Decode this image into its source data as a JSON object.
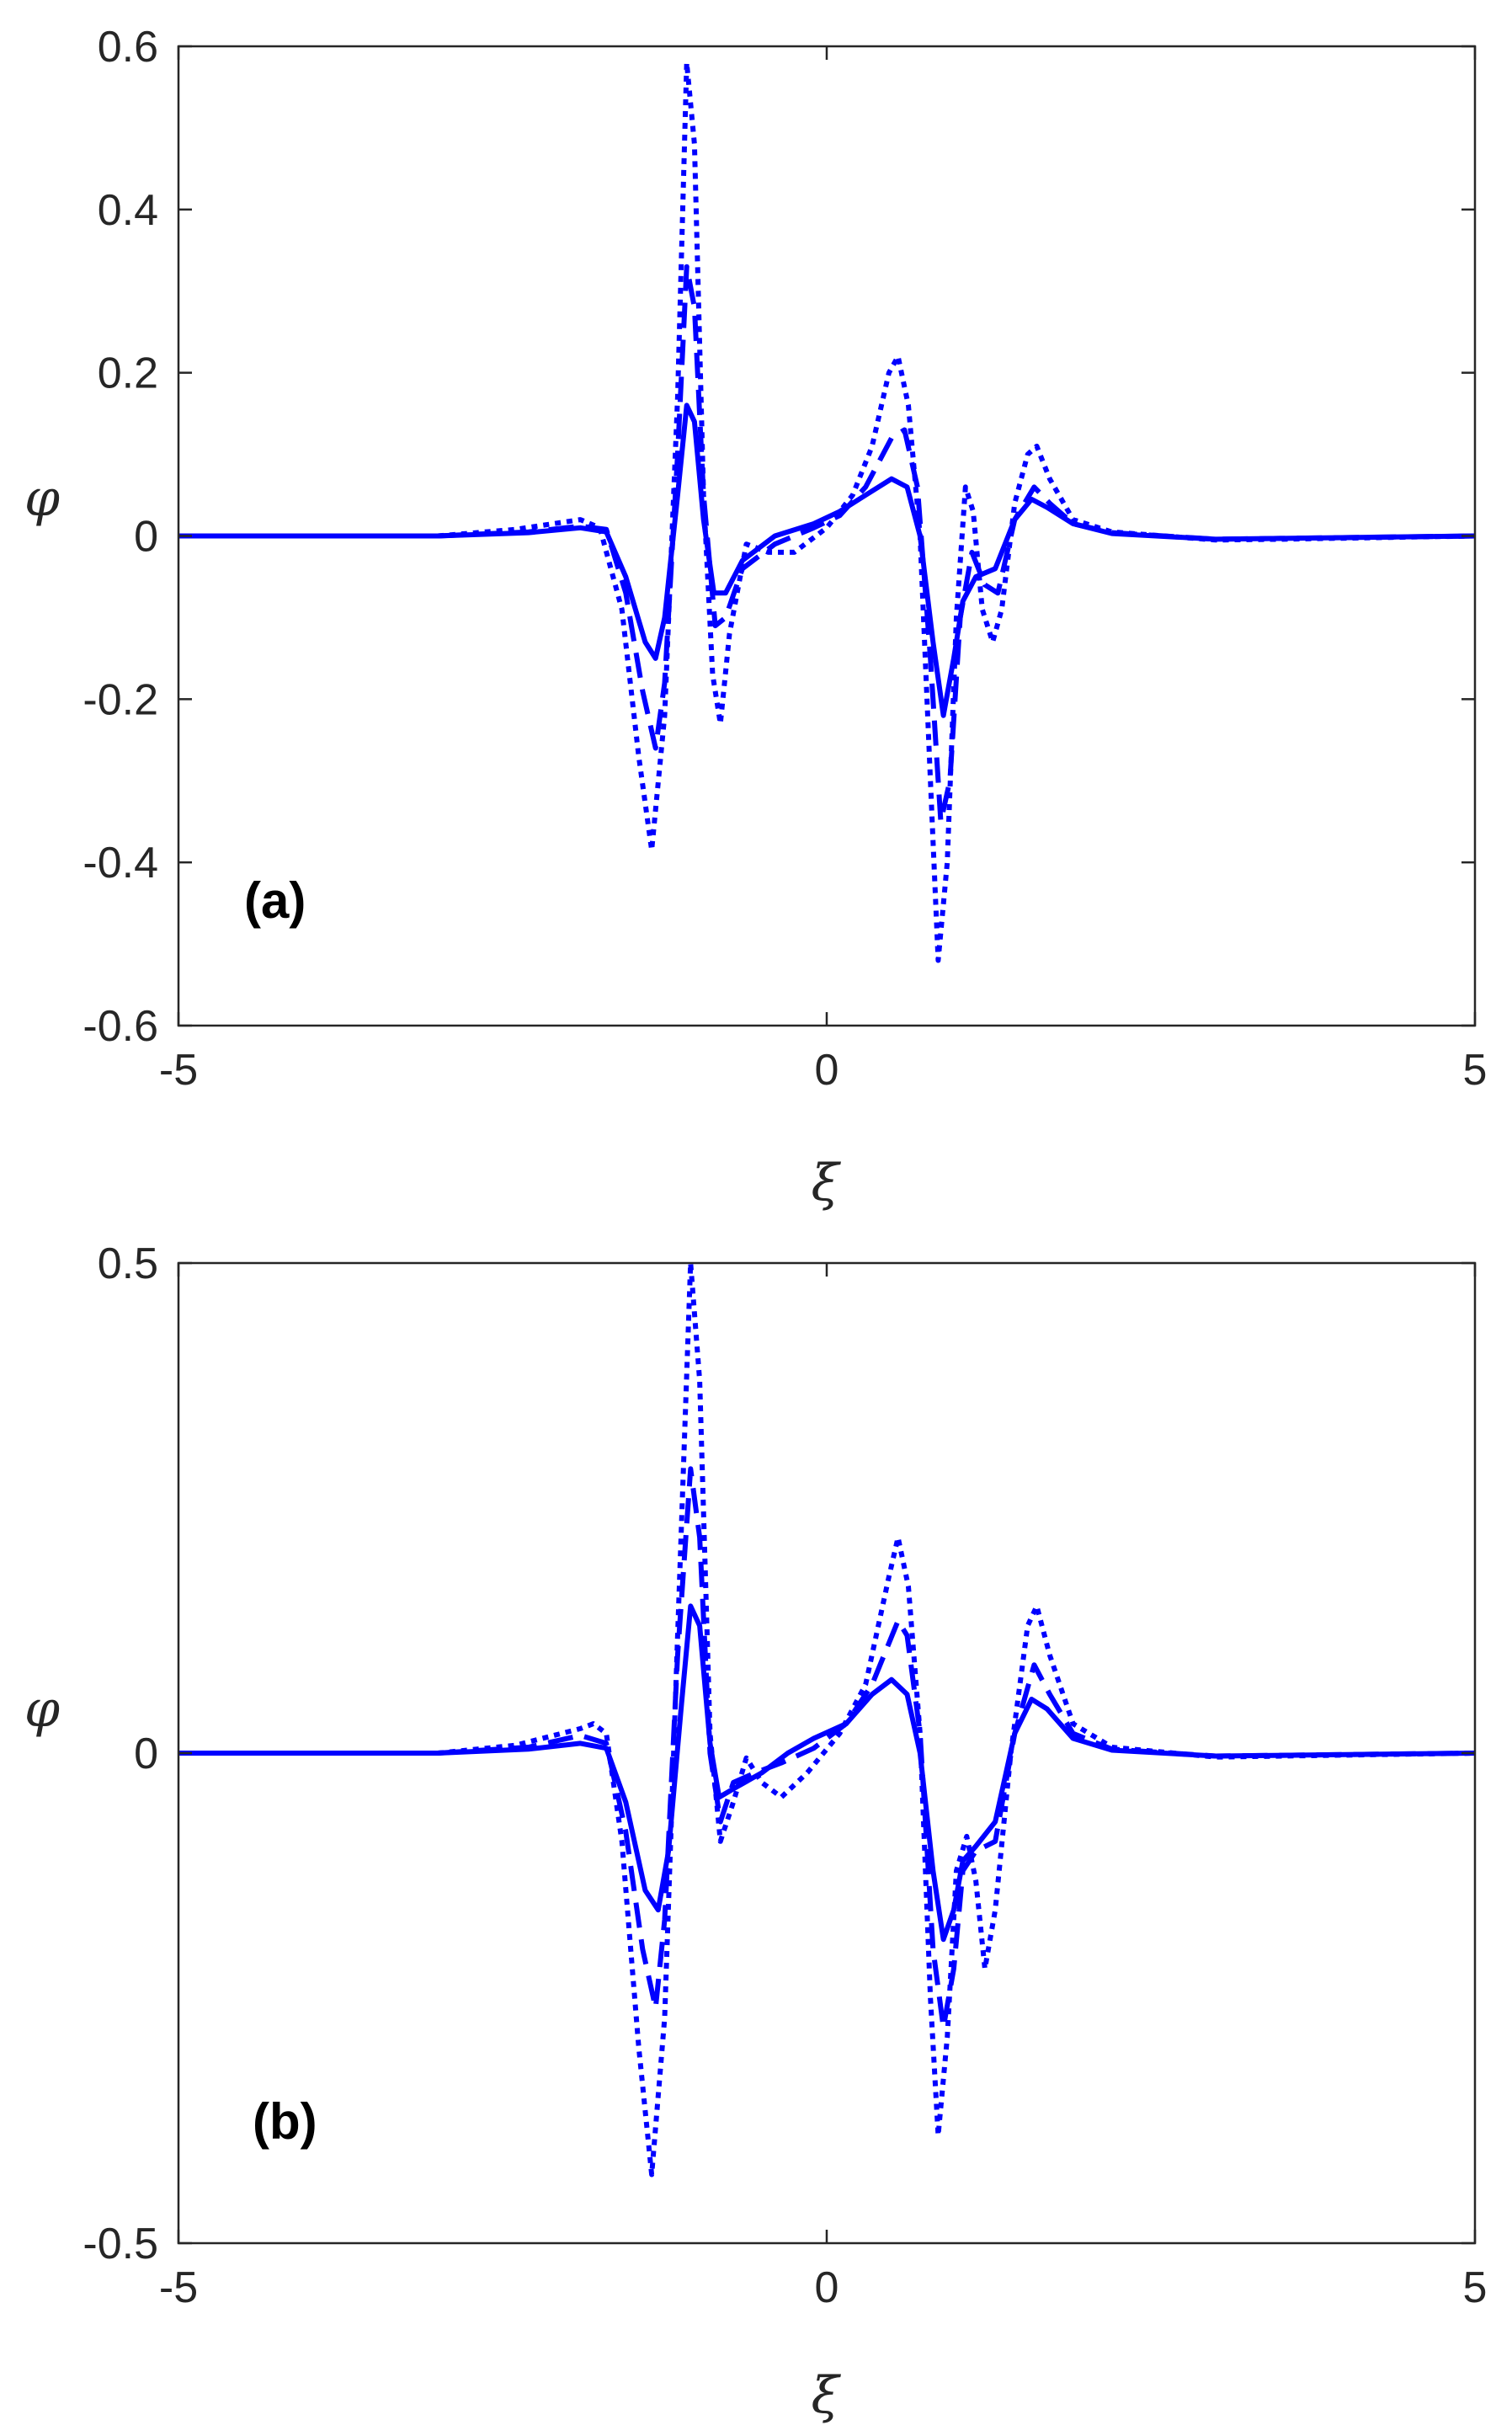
{
  "chart_data": [
    {
      "type": "line",
      "panel_label": "(a)",
      "xlabel": "ξ",
      "ylabel": "φ",
      "xlim": [
        -5,
        5
      ],
      "ylim": [
        -0.6,
        0.6
      ],
      "xticks": [
        -5,
        0,
        5
      ],
      "yticks": [
        -0.6,
        -0.4,
        -0.2,
        0,
        0.2,
        0.4,
        0.6
      ],
      "xtick_labels": [
        "-5",
        "0",
        "5"
      ],
      "ytick_labels": [
        "-0.6",
        "-0.4",
        "-0.2",
        "0",
        "0.2",
        "0.4",
        "0.6"
      ],
      "grid": false,
      "line_color": "#0000ff",
      "series": [
        {
          "style": "solid",
          "points": [
            [
              -5,
              0
            ],
            [
              -3,
              0
            ],
            [
              -2.3,
              0.004
            ],
            [
              -1.9,
              0.01
            ],
            [
              -1.7,
              0.005
            ],
            [
              -1.55,
              -0.05
            ],
            [
              -1.4,
              -0.13
            ],
            [
              -1.32,
              -0.15
            ],
            [
              -1.25,
              -0.1
            ],
            [
              -1.15,
              0.05
            ],
            [
              -1.08,
              0.16
            ],
            [
              -1.02,
              0.14
            ],
            [
              -0.95,
              0.02
            ],
            [
              -0.87,
              -0.07
            ],
            [
              -0.78,
              -0.07
            ],
            [
              -0.65,
              -0.03
            ],
            [
              -0.4,
              0
            ],
            [
              -0.1,
              0.015
            ],
            [
              0.1,
              0.03
            ],
            [
              0.3,
              0.05
            ],
            [
              0.5,
              0.07
            ],
            [
              0.62,
              0.06
            ],
            [
              0.72,
              0
            ],
            [
              0.82,
              -0.13
            ],
            [
              0.9,
              -0.22
            ],
            [
              0.98,
              -0.15
            ],
            [
              1.05,
              -0.08
            ],
            [
              1.15,
              -0.05
            ],
            [
              1.3,
              -0.04
            ],
            [
              1.45,
              0.02
            ],
            [
              1.58,
              0.045
            ],
            [
              1.7,
              0.035
            ],
            [
              1.9,
              0.015
            ],
            [
              2.2,
              0.003
            ],
            [
              3,
              -0.004
            ],
            [
              3.5,
              -0.003
            ],
            [
              5,
              0
            ]
          ]
        },
        {
          "style": "dashed",
          "points": [
            [
              -5,
              0
            ],
            [
              -3,
              0
            ],
            [
              -2.3,
              0.005
            ],
            [
              -1.9,
              0.012
            ],
            [
              -1.7,
              0.008
            ],
            [
              -1.55,
              -0.07
            ],
            [
              -1.42,
              -0.19
            ],
            [
              -1.32,
              -0.26
            ],
            [
              -1.25,
              -0.18
            ],
            [
              -1.15,
              0.1
            ],
            [
              -1.08,
              0.33
            ],
            [
              -1.02,
              0.28
            ],
            [
              -0.95,
              0.05
            ],
            [
              -0.86,
              -0.11
            ],
            [
              -0.78,
              -0.1
            ],
            [
              -0.65,
              -0.04
            ],
            [
              -0.4,
              -0.01
            ],
            [
              -0.1,
              0.01
            ],
            [
              0.1,
              0.025
            ],
            [
              0.3,
              0.06
            ],
            [
              0.5,
              0.12
            ],
            [
              0.6,
              0.13
            ],
            [
              0.7,
              0.06
            ],
            [
              0.8,
              -0.15
            ],
            [
              0.88,
              -0.35
            ],
            [
              0.95,
              -0.3
            ],
            [
              1.03,
              -0.1
            ],
            [
              1.12,
              -0.02
            ],
            [
              1.22,
              -0.06
            ],
            [
              1.32,
              -0.07
            ],
            [
              1.45,
              0.02
            ],
            [
              1.6,
              0.06
            ],
            [
              1.72,
              0.04
            ],
            [
              1.9,
              0.015
            ],
            [
              2.2,
              0.004
            ],
            [
              3,
              -0.004
            ],
            [
              3.5,
              -0.003
            ],
            [
              5,
              0
            ]
          ]
        },
        {
          "style": "dotted",
          "points": [
            [
              -5,
              0
            ],
            [
              -3,
              0
            ],
            [
              -2.4,
              0.008
            ],
            [
              -1.9,
              0.02
            ],
            [
              -1.75,
              0.01
            ],
            [
              -1.58,
              -0.09
            ],
            [
              -1.45,
              -0.27
            ],
            [
              -1.35,
              -0.385
            ],
            [
              -1.25,
              -0.22
            ],
            [
              -1.15,
              0.17
            ],
            [
              -1.08,
              0.58
            ],
            [
              -1.02,
              0.48
            ],
            [
              -0.95,
              0.05
            ],
            [
              -0.88,
              -0.17
            ],
            [
              -0.82,
              -0.23
            ],
            [
              -0.75,
              -0.12
            ],
            [
              -0.62,
              -0.01
            ],
            [
              -0.45,
              -0.02
            ],
            [
              -0.25,
              -0.02
            ],
            [
              0,
              0.01
            ],
            [
              0.2,
              0.05
            ],
            [
              0.35,
              0.11
            ],
            [
              0.48,
              0.2
            ],
            [
              0.55,
              0.22
            ],
            [
              0.63,
              0.16
            ],
            [
              0.72,
              0
            ],
            [
              0.8,
              -0.3
            ],
            [
              0.86,
              -0.52
            ],
            [
              0.93,
              -0.4
            ],
            [
              1.0,
              -0.1
            ],
            [
              1.07,
              0.06
            ],
            [
              1.13,
              0.03
            ],
            [
              1.2,
              -0.09
            ],
            [
              1.28,
              -0.13
            ],
            [
              1.35,
              -0.09
            ],
            [
              1.45,
              0.04
            ],
            [
              1.55,
              0.1
            ],
            [
              1.62,
              0.11
            ],
            [
              1.72,
              0.07
            ],
            [
              1.9,
              0.02
            ],
            [
              2.2,
              0.005
            ],
            [
              3,
              -0.005
            ],
            [
              3.5,
              -0.004
            ],
            [
              5,
              0
            ]
          ]
        }
      ]
    },
    {
      "type": "line",
      "panel_label": "(b)",
      "xlabel": "ξ",
      "ylabel": "φ",
      "xlim": [
        -5,
        5
      ],
      "ylim": [
        -0.5,
        0.5
      ],
      "xticks": [
        -5,
        0,
        5
      ],
      "yticks": [
        -0.5,
        0,
        0.5
      ],
      "xtick_labels": [
        "-5",
        "0",
        "5"
      ],
      "ytick_labels": [
        "-0.5",
        "0",
        "0.5"
      ],
      "grid": false,
      "line_color": "#0000ff",
      "series": [
        {
          "style": "solid",
          "points": [
            [
              -5,
              0
            ],
            [
              -3,
              0
            ],
            [
              -2.3,
              0.004
            ],
            [
              -1.9,
              0.01
            ],
            [
              -1.7,
              0.005
            ],
            [
              -1.55,
              -0.05
            ],
            [
              -1.4,
              -0.14
            ],
            [
              -1.3,
              -0.16
            ],
            [
              -1.22,
              -0.1
            ],
            [
              -1.12,
              0.05
            ],
            [
              -1.05,
              0.15
            ],
            [
              -0.98,
              0.13
            ],
            [
              -0.9,
              0.01
            ],
            [
              -0.83,
              -0.045
            ],
            [
              -0.7,
              -0.035
            ],
            [
              -0.5,
              -0.02
            ],
            [
              -0.3,
              0
            ],
            [
              -0.1,
              0.015
            ],
            [
              0.15,
              0.03
            ],
            [
              0.35,
              0.06
            ],
            [
              0.5,
              0.075
            ],
            [
              0.62,
              0.06
            ],
            [
              0.72,
              0
            ],
            [
              0.82,
              -0.12
            ],
            [
              0.9,
              -0.19
            ],
            [
              0.98,
              -0.16
            ],
            [
              1.05,
              -0.11
            ],
            [
              1.15,
              -0.095
            ],
            [
              1.3,
              -0.07
            ],
            [
              1.45,
              0.02
            ],
            [
              1.58,
              0.055
            ],
            [
              1.7,
              0.045
            ],
            [
              1.9,
              0.015
            ],
            [
              2.2,
              0.003
            ],
            [
              3,
              -0.003
            ],
            [
              5,
              0
            ]
          ]
        },
        {
          "style": "dashed",
          "points": [
            [
              -5,
              0
            ],
            [
              -3,
              0
            ],
            [
              -2.3,
              0.006
            ],
            [
              -1.9,
              0.018
            ],
            [
              -1.7,
              0.01
            ],
            [
              -1.55,
              -0.08
            ],
            [
              -1.42,
              -0.2
            ],
            [
              -1.32,
              -0.26
            ],
            [
              -1.25,
              -0.17
            ],
            [
              -1.15,
              0.1
            ],
            [
              -1.05,
              0.29
            ],
            [
              -0.98,
              0.22
            ],
            [
              -0.9,
              0
            ],
            [
              -0.82,
              -0.07
            ],
            [
              -0.72,
              -0.03
            ],
            [
              -0.55,
              -0.02
            ],
            [
              -0.35,
              -0.01
            ],
            [
              -0.1,
              0.005
            ],
            [
              0.15,
              0.03
            ],
            [
              0.35,
              0.07
            ],
            [
              0.55,
              0.135
            ],
            [
              0.62,
              0.12
            ],
            [
              0.72,
              0.02
            ],
            [
              0.82,
              -0.2
            ],
            [
              0.9,
              -0.28
            ],
            [
              0.98,
              -0.22
            ],
            [
              1.05,
              -0.12
            ],
            [
              1.15,
              -0.1
            ],
            [
              1.3,
              -0.09
            ],
            [
              1.45,
              0.02
            ],
            [
              1.6,
              0.09
            ],
            [
              1.72,
              0.06
            ],
            [
              1.9,
              0.02
            ],
            [
              2.2,
              0.004
            ],
            [
              3,
              -0.003
            ],
            [
              5,
              0
            ]
          ]
        },
        {
          "style": "dotted",
          "points": [
            [
              -5,
              0
            ],
            [
              -3,
              0
            ],
            [
              -2.4,
              0.008
            ],
            [
              -1.9,
              0.025
            ],
            [
              -1.8,
              0.03
            ],
            [
              -1.7,
              0.02
            ],
            [
              -1.58,
              -0.09
            ],
            [
              -1.45,
              -0.3
            ],
            [
              -1.35,
              -0.43
            ],
            [
              -1.25,
              -0.27
            ],
            [
              -1.15,
              0.12
            ],
            [
              -1.05,
              0.5
            ],
            [
              -0.98,
              0.38
            ],
            [
              -0.9,
              0.02
            ],
            [
              -0.82,
              -0.09
            ],
            [
              -0.72,
              -0.05
            ],
            [
              -0.62,
              -0.005
            ],
            [
              -0.5,
              -0.03
            ],
            [
              -0.35,
              -0.045
            ],
            [
              -0.15,
              -0.02
            ],
            [
              0.1,
              0.02
            ],
            [
              0.3,
              0.07
            ],
            [
              0.48,
              0.18
            ],
            [
              0.55,
              0.22
            ],
            [
              0.63,
              0.17
            ],
            [
              0.72,
              0.02
            ],
            [
              0.8,
              -0.25
            ],
            [
              0.86,
              -0.39
            ],
            [
              0.93,
              -0.29
            ],
            [
              1.0,
              -0.12
            ],
            [
              1.08,
              -0.085
            ],
            [
              1.15,
              -0.13
            ],
            [
              1.22,
              -0.22
            ],
            [
              1.3,
              -0.16
            ],
            [
              1.42,
              0
            ],
            [
              1.55,
              0.13
            ],
            [
              1.62,
              0.15
            ],
            [
              1.72,
              0.1
            ],
            [
              1.9,
              0.03
            ],
            [
              2.2,
              0.006
            ],
            [
              3,
              -0.004
            ],
            [
              5,
              0
            ]
          ]
        }
      ]
    }
  ]
}
